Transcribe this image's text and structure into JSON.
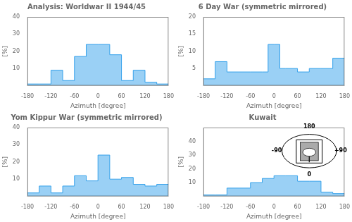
{
  "chart_data": [
    {
      "type": "histogram",
      "title": "Analysis: Worldwar II 1944/45",
      "xlabel": "Azimuth [degree]",
      "ylabel": "[%]",
      "bins": [
        -180,
        -150,
        -120,
        -90,
        -60,
        -30,
        0,
        30,
        60,
        90,
        120,
        150,
        180
      ],
      "values": [
        1,
        1,
        9,
        3,
        17,
        24,
        24,
        18,
        3,
        9,
        2,
        1
      ],
      "xlim": [
        -180,
        180
      ],
      "xticks": [
        -180,
        -120,
        -60,
        0,
        60,
        120,
        180
      ],
      "ylim": [
        0,
        40
      ],
      "yticks": [
        10,
        20,
        30,
        40
      ],
      "grid": false
    },
    {
      "type": "histogram",
      "title": "6 Day War (symmetric mirrored)",
      "xlabel": "Azimuth [degree]",
      "ylabel": "[%]",
      "bins": [
        -180,
        -150,
        -120,
        -90,
        -60,
        -30,
        -15,
        0,
        15,
        30,
        60,
        90,
        120,
        150,
        180
      ],
      "values": [
        2,
        7,
        4,
        4,
        4,
        4,
        12,
        12,
        5,
        5,
        4,
        5,
        5,
        8
      ],
      "xlim": [
        -180,
        180
      ],
      "xticks": [
        -180,
        -120,
        -60,
        0,
        60,
        120,
        180
      ],
      "ylim": [
        0,
        20
      ],
      "yticks": [
        5,
        10,
        15,
        20
      ],
      "grid": false
    },
    {
      "type": "histogram",
      "title": "Yom Kippur War (symmetric mirrored)",
      "xlabel": "Azimuth [degree]",
      "ylabel": "[%]",
      "bins": [
        -180,
        -150,
        -120,
        -90,
        -60,
        -30,
        0,
        30,
        60,
        90,
        120,
        150,
        180
      ],
      "values": [
        2,
        6,
        2,
        6,
        12,
        9,
        24,
        10,
        11,
        7,
        6,
        7
      ],
      "xlim": [
        -180,
        180
      ],
      "xticks": [
        -180,
        -120,
        -60,
        0,
        60,
        120,
        180
      ],
      "ylim": [
        0,
        40
      ],
      "yticks": [
        10,
        20,
        30,
        40
      ],
      "grid": false
    },
    {
      "type": "histogram",
      "title": "Kuwait",
      "xlabel": "Azimuth [degree]",
      "ylabel": "[%]",
      "bins": [
        -180,
        -150,
        -120,
        -90,
        -60,
        -30,
        0,
        30,
        60,
        90,
        120,
        150,
        180
      ],
      "values": [
        1,
        1,
        6,
        6,
        10,
        13,
        15,
        15,
        11,
        11,
        3,
        2
      ],
      "xlim": [
        -180,
        180
      ],
      "xticks": [
        -180,
        -120,
        -60,
        0,
        60,
        120,
        180
      ],
      "ylim": [
        0,
        50
      ],
      "yticks": [
        10,
        20,
        30,
        40
      ],
      "grid": false,
      "annotations": [
        {
          "text": "180"
        },
        {
          "text": "0"
        },
        {
          "text": "-90"
        },
        {
          "text": "+90"
        }
      ]
    }
  ]
}
